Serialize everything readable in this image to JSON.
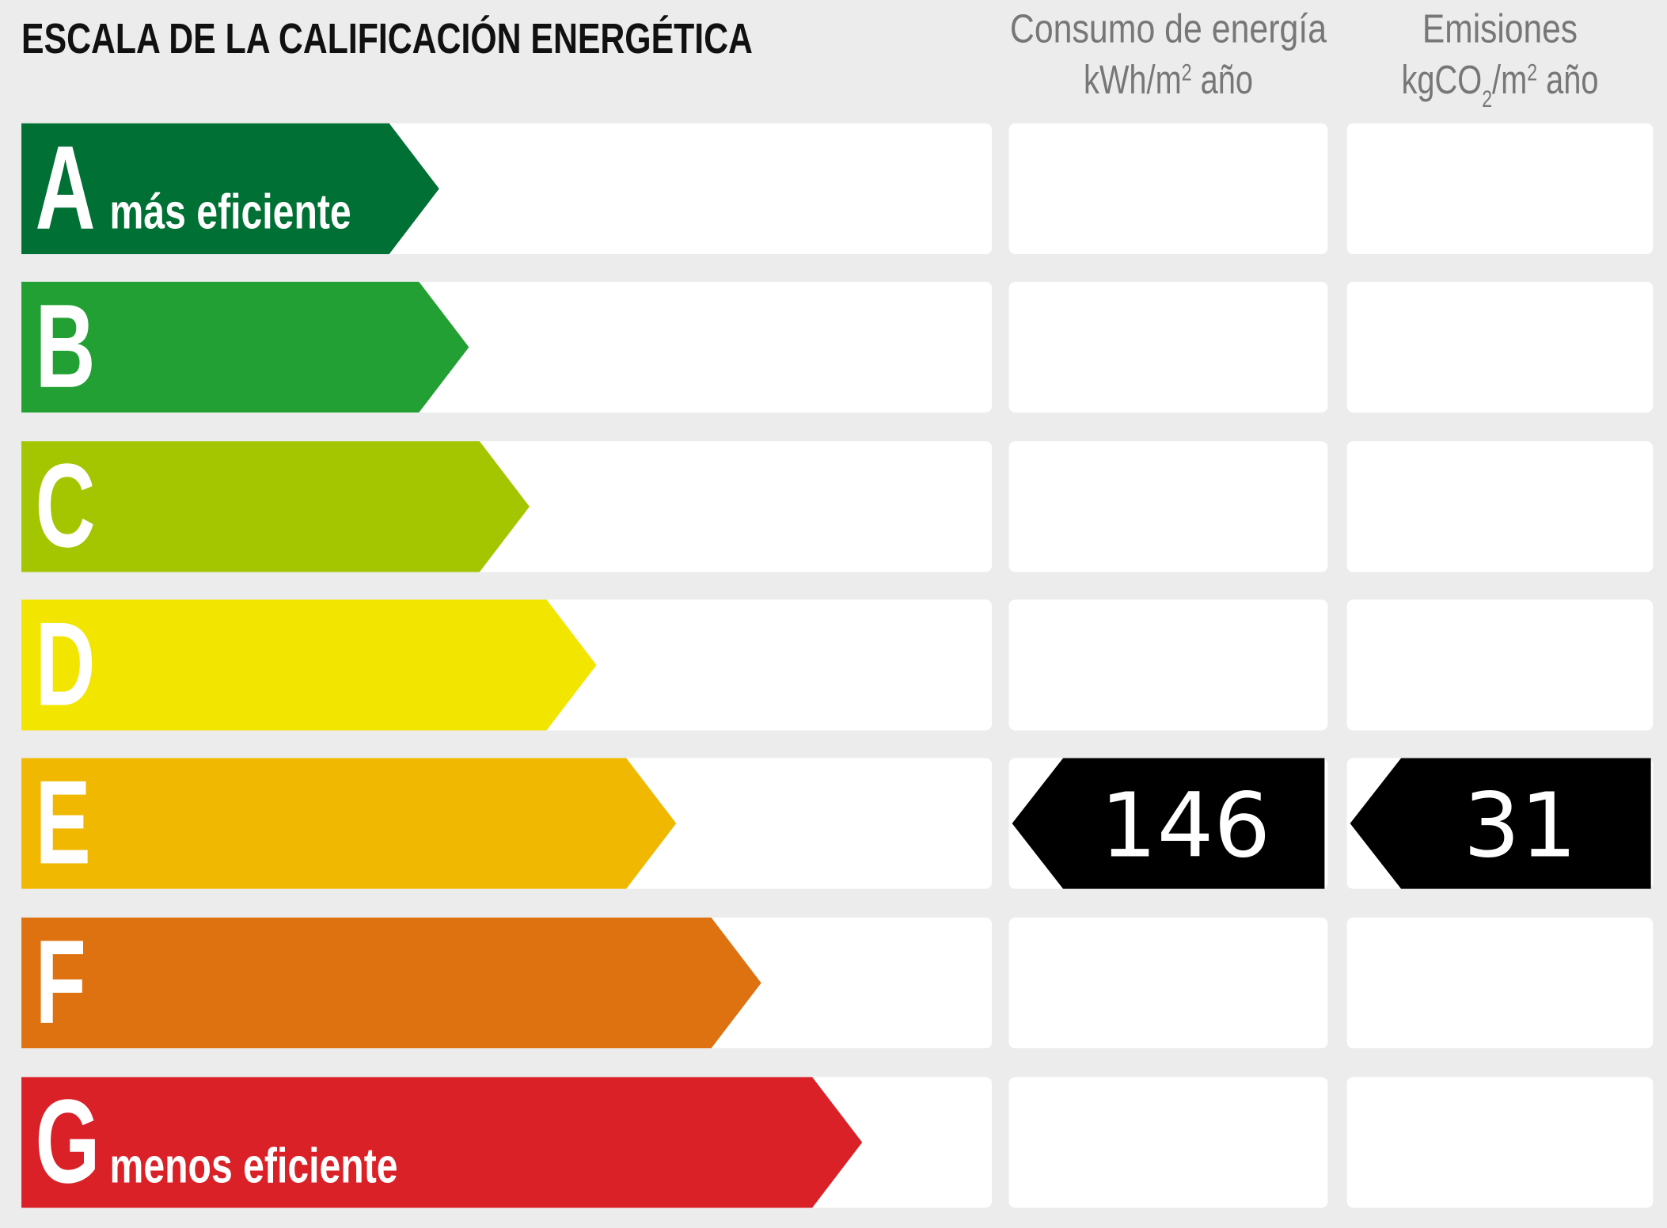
{
  "title": "ESCALA DE LA CALIFICACIÓN ENERGÉTICA",
  "headers": [
    {
      "title": "Consumo de energía",
      "unit": [
        "kWh/m",
        "2",
        " año"
      ]
    },
    {
      "title": "Emisiones",
      "unit": [
        "kgCO",
        "2",
        "/m",
        "2",
        " año"
      ]
    }
  ],
  "rows": [
    {
      "letter": "A",
      "label": "más eficiente",
      "color": "#007034"
    },
    {
      "letter": "B",
      "color": "#22a033"
    },
    {
      "letter": "C",
      "color": "#a3c600"
    },
    {
      "letter": "D",
      "color": "#f2e500"
    },
    {
      "letter": "E",
      "color": "#f0b800",
      "consumption": 146,
      "emissions": 31
    },
    {
      "letter": "F",
      "color": "#de7210"
    },
    {
      "letter": "G",
      "label": "menos eficiente",
      "color": "#da2128"
    }
  ]
}
